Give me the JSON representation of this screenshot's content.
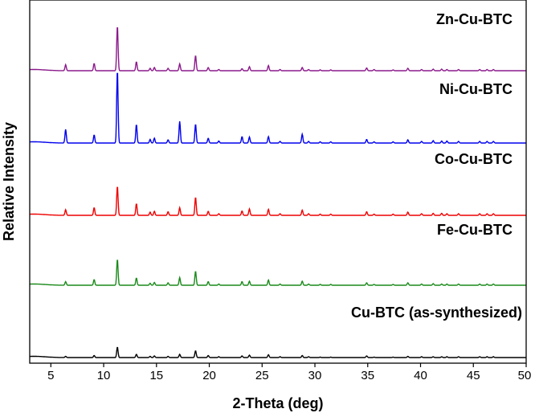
{
  "chart_data": {
    "type": "line",
    "xlabel": "2-Theta (deg)",
    "ylabel": "Relative Intensity",
    "xlim": [
      3,
      50
    ],
    "xticks": [
      5,
      10,
      15,
      20,
      25,
      30,
      35,
      40,
      45,
      50
    ],
    "y_tick_labels": false,
    "grid": false,
    "legend": "labels placed above each pattern on the right",
    "peak_positions": [
      6.4,
      9.1,
      11.3,
      13.1,
      14.4,
      14.8,
      16.1,
      17.2,
      18.7,
      19.9,
      20.9,
      23.1,
      23.8,
      25.6,
      26.7,
      28.8,
      29.4,
      30.5,
      31.5,
      34.9,
      35.6,
      37.4,
      38.8,
      40.1,
      41.2,
      42.0,
      42.5,
      43.6,
      45.6,
      46.3,
      46.9
    ],
    "series": [
      {
        "name": "Zn-Cu-BTC",
        "color": "#8b1a8b",
        "intensities": [
          15,
          18,
          112,
          22,
          6,
          8,
          6,
          17,
          38,
          8,
          3,
          5,
          10,
          13,
          3,
          8,
          3,
          2,
          2,
          7,
          3,
          2,
          6,
          3,
          4,
          4,
          3,
          3,
          3,
          3,
          3
        ]
      },
      {
        "name": "Ni-Cu-BTC",
        "color": "#0000ee",
        "intensities": [
          34,
          20,
          182,
          46,
          9,
          12,
          8,
          54,
          47,
          12,
          5,
          16,
          15,
          16,
          4,
          22,
          4,
          3,
          3,
          9,
          3,
          3,
          8,
          4,
          6,
          5,
          5,
          4,
          4,
          4,
          4
        ]
      },
      {
        "name": "Co-Cu-BTC",
        "color": "#ee0000",
        "intensities": [
          14,
          19,
          73,
          29,
          8,
          10,
          9,
          19,
          45,
          10,
          4,
          11,
          16,
          15,
          4,
          13,
          4,
          3,
          3,
          9,
          3,
          3,
          8,
          4,
          5,
          5,
          4,
          4,
          4,
          4,
          4
        ]
      },
      {
        "name": "Fe-Cu-BTC",
        "color": "#1a8a1a",
        "intensities": [
          9,
          14,
          65,
          18,
          5,
          7,
          6,
          19,
          35,
          9,
          3,
          9,
          10,
          13,
          3,
          10,
          3,
          2,
          2,
          6,
          2,
          2,
          6,
          3,
          4,
          3,
          3,
          3,
          3,
          3,
          3
        ]
      },
      {
        "name": "Cu-BTC (as-synthesized)",
        "color": "#000000",
        "intensities": [
          3,
          5,
          26,
          8,
          3,
          4,
          3,
          8,
          17,
          5,
          2,
          4,
          6,
          7,
          2,
          5,
          2,
          1,
          1,
          4,
          1,
          1,
          3,
          2,
          2,
          2,
          2,
          2,
          2,
          2,
          2
        ]
      }
    ]
  }
}
